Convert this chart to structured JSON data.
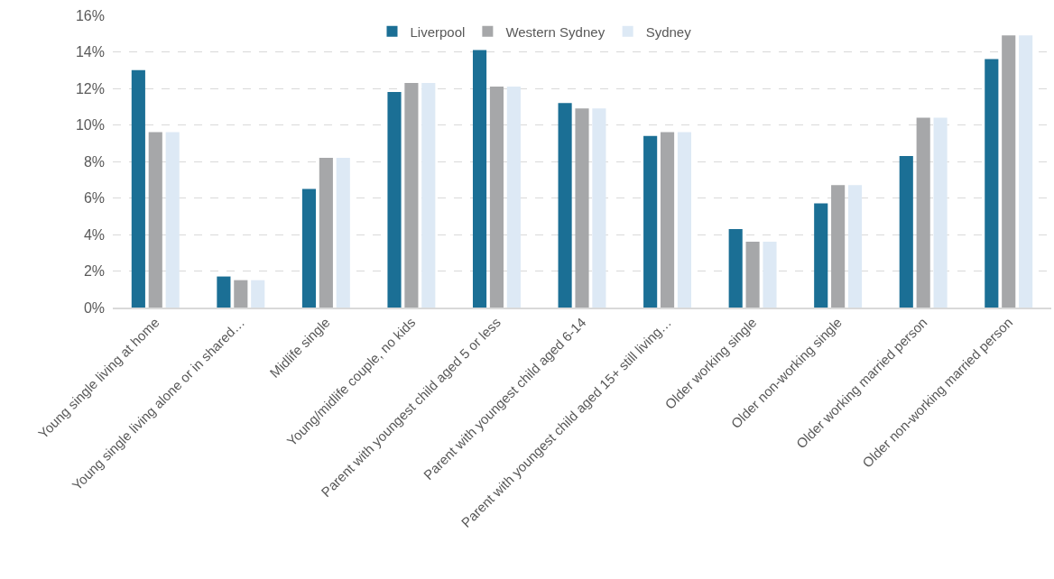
{
  "chart_data": {
    "type": "bar",
    "categories": [
      "Young single living at home",
      "Young single living alone or in shared…",
      "Midlife single",
      "Young/midlife couple, no kids",
      "Parent with youngest child aged 5 or less",
      "Parent with youngest child aged 6-14",
      "Parent with youngest child aged 15+ still living…",
      "Older working single",
      "Older non-working single",
      "Older working married person",
      "Older non-working married person"
    ],
    "series": [
      {
        "name": "Liverpool",
        "color": "#1b6f95",
        "values": [
          13.0,
          1.7,
          6.5,
          11.8,
          14.1,
          11.2,
          9.4,
          4.3,
          5.7,
          8.3,
          13.6
        ]
      },
      {
        "name": "Western Sydney",
        "color": "#a6a7a9",
        "values": [
          9.6,
          1.5,
          8.2,
          12.3,
          12.1,
          10.9,
          9.6,
          3.6,
          6.7,
          10.4,
          14.9
        ]
      },
      {
        "name": "Sydney",
        "color": "#dde9f5",
        "values": [
          9.6,
          1.5,
          8.2,
          12.3,
          12.1,
          10.9,
          9.6,
          3.6,
          6.7,
          10.4,
          14.9
        ]
      }
    ],
    "ylim": [
      0,
      16
    ],
    "yticks": [
      {
        "value": 0,
        "label": "0%"
      },
      {
        "value": 2,
        "label": "2%"
      },
      {
        "value": 4,
        "label": "4%"
      },
      {
        "value": 6,
        "label": "6%"
      },
      {
        "value": 8,
        "label": "8%"
      },
      {
        "value": 10,
        "label": "10%"
      },
      {
        "value": 12,
        "label": "12%"
      },
      {
        "value": 14,
        "label": "14%"
      },
      {
        "value": 16,
        "label": "16%"
      }
    ],
    "grid": "y",
    "legend": "top"
  }
}
